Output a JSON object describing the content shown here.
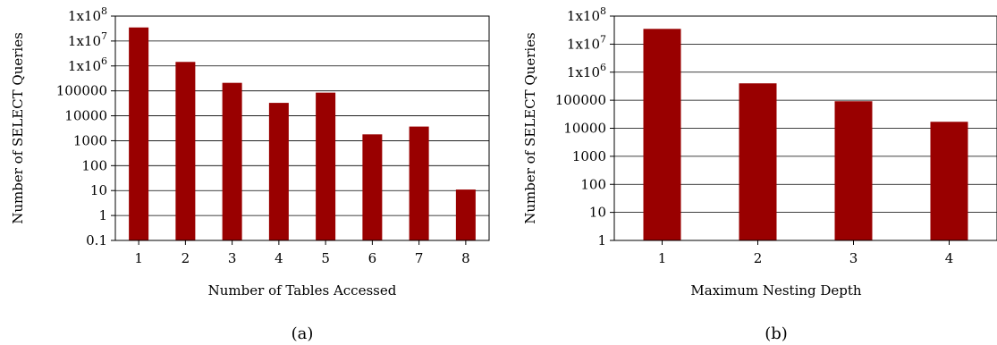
{
  "colors": {
    "bar": "#990000",
    "grid": "#000000",
    "axis": "#000000"
  },
  "chart_data": [
    {
      "type": "bar",
      "caption": "(a)",
      "xlabel": "Number of Tables Accessed",
      "ylabel": "Number of SELECT Queries",
      "yscale": "log",
      "ylim": [
        0.1,
        100000000
      ],
      "grid": true,
      "categories": [
        "1",
        "2",
        "3",
        "4",
        "5",
        "6",
        "7",
        "8"
      ],
      "values": [
        35000000,
        1450000,
        210000,
        33000,
        85000,
        1800,
        3700,
        11
      ],
      "yticks": [
        {
          "value": 0.1,
          "label": "0.1",
          "base": "0.1",
          "exp": ""
        },
        {
          "value": 1,
          "label": "1",
          "base": "1",
          "exp": ""
        },
        {
          "value": 10,
          "label": "10",
          "base": "10",
          "exp": ""
        },
        {
          "value": 100,
          "label": "100",
          "base": "100",
          "exp": ""
        },
        {
          "value": 1000,
          "label": "1000",
          "base": "1000",
          "exp": ""
        },
        {
          "value": 10000,
          "label": "10000",
          "base": "10000",
          "exp": ""
        },
        {
          "value": 100000,
          "label": "100000",
          "base": "100000",
          "exp": ""
        },
        {
          "value": 1000000,
          "label": "1x10^6",
          "base": "1x10",
          "exp": "6"
        },
        {
          "value": 10000000,
          "label": "1x10^7",
          "base": "1x10",
          "exp": "7"
        },
        {
          "value": 100000000,
          "label": "1x10^8",
          "base": "1x10",
          "exp": "8"
        }
      ]
    },
    {
      "type": "bar",
      "caption": "(b)",
      "xlabel": "Maximum Nesting Depth",
      "ylabel": "Number of SELECT Queries",
      "yscale": "log",
      "ylim": [
        1,
        100000000
      ],
      "grid": true,
      "categories": [
        "1",
        "2",
        "3",
        "4"
      ],
      "values": [
        35000000,
        400000,
        92000,
        17000
      ],
      "yticks": [
        {
          "value": 1,
          "label": "1",
          "base": "1",
          "exp": ""
        },
        {
          "value": 10,
          "label": "10",
          "base": "10",
          "exp": ""
        },
        {
          "value": 100,
          "label": "100",
          "base": "100",
          "exp": ""
        },
        {
          "value": 1000,
          "label": "1000",
          "base": "1000",
          "exp": ""
        },
        {
          "value": 10000,
          "label": "10000",
          "base": "10000",
          "exp": ""
        },
        {
          "value": 100000,
          "label": "100000",
          "base": "100000",
          "exp": ""
        },
        {
          "value": 1000000,
          "label": "1x10^6",
          "base": "1x10",
          "exp": "6"
        },
        {
          "value": 10000000,
          "label": "1x10^7",
          "base": "1x10",
          "exp": "7"
        },
        {
          "value": 100000000,
          "label": "1x10^8",
          "base": "1x10",
          "exp": "8"
        }
      ]
    }
  ]
}
